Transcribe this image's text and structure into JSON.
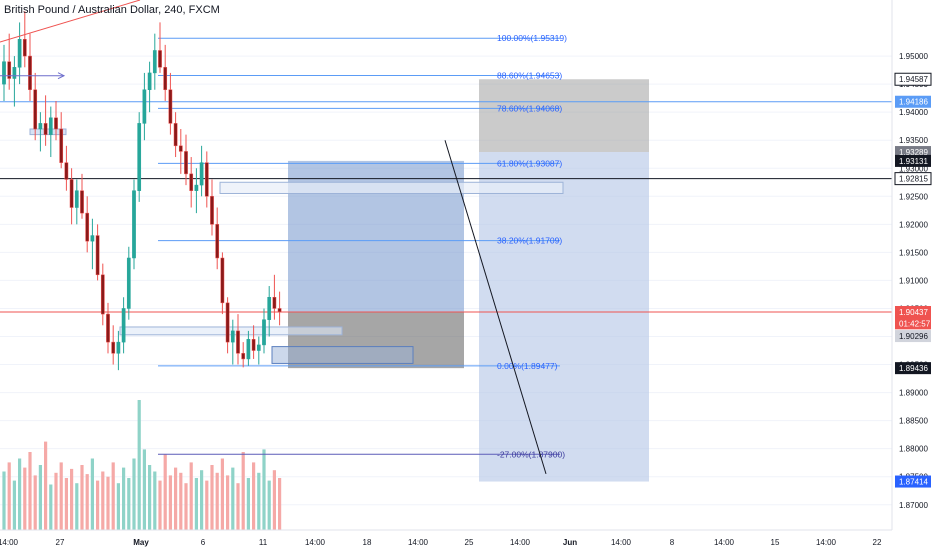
{
  "chart_data": {
    "type": "candlestick",
    "title": "British Pound / Australian Dollar, 240, FXCM",
    "symbol": "GBPAUD",
    "timeframe": "240",
    "broker": "FXCM",
    "y_range": [
      1.8655,
      1.96
    ],
    "y_ticks": [
      "1.95000",
      "1.94500",
      "1.94000",
      "1.93500",
      "1.93000",
      "1.92500",
      "1.92000",
      "1.91500",
      "1.91000",
      "1.90500",
      "1.90000",
      "1.89500",
      "1.89000",
      "1.88500",
      "1.88000",
      "1.87500",
      "1.87000"
    ],
    "x_ticks": [
      "14:00",
      "27",
      "May",
      "6",
      "11",
      "14:00",
      "18",
      "14:00",
      "25",
      "14:00",
      "Jun",
      "14:00",
      "8",
      "14:00",
      "15",
      "14:00",
      "22"
    ],
    "fibonacci": [
      {
        "label": "100.00%(1.95319)",
        "value": 1.95319
      },
      {
        "label": "88.60%(1.94653)",
        "value": 1.94653
      },
      {
        "label": "78.60%(1.94068)",
        "value": 1.94068
      },
      {
        "label": "61.80%(1.93087)",
        "value": 1.93087
      },
      {
        "label": "38.20%(1.91709)",
        "value": 1.91709
      },
      {
        "label": "0.00%(1.89477)",
        "value": 1.89477
      },
      {
        "label": "-27.00%(1.87900)",
        "value": 1.879
      }
    ],
    "price_badges": [
      {
        "label": "1.94587",
        "value": 1.94587,
        "bg": "#ffffff",
        "fg": "#131722",
        "border": "#131722"
      },
      {
        "label": "1.94186",
        "value": 1.94186,
        "bg": "#5b9cf6",
        "fg": "#ffffff"
      },
      {
        "label": "1.93289",
        "value": 1.93289,
        "bg": "#787b86",
        "fg": "#ffffff"
      },
      {
        "label": "1.93131",
        "value": 1.93131,
        "bg": "#131722",
        "fg": "#ffffff"
      },
      {
        "label": "1.92815",
        "value": 1.92815,
        "bg": "#ffffff",
        "fg": "#131722",
        "border": "#131722"
      },
      {
        "label": "1.90437",
        "value": 1.90437,
        "bg": "#ef5350",
        "fg": "#ffffff"
      },
      {
        "label": "01:42:57",
        "value": 1.90235,
        "bg": "#ef5350",
        "fg": "#ffffff"
      },
      {
        "label": "1.90296",
        "value": 1.90008,
        "bg": "#d1d4dc",
        "fg": "#131722"
      },
      {
        "label": "1.89436",
        "value": 1.89436,
        "bg": "#131722",
        "fg": "#ffffff"
      },
      {
        "label": "1.87414",
        "value": 1.87414,
        "bg": "#2962ff",
        "fg": "#ffffff"
      }
    ],
    "horizontal_lines": [
      {
        "value": 1.94186,
        "color": "#5b9cf6"
      },
      {
        "value": 1.92815,
        "color": "#131722"
      },
      {
        "value": 1.90437,
        "color": "#ef5350"
      }
    ],
    "candles": [
      {
        "o": 1.945,
        "h": 1.952,
        "l": 1.942,
        "c": 1.949
      },
      {
        "o": 1.949,
        "h": 1.954,
        "l": 1.944,
        "c": 1.946
      },
      {
        "o": 1.946,
        "h": 1.95,
        "l": 1.941,
        "c": 1.948
      },
      {
        "o": 1.948,
        "h": 1.956,
        "l": 1.945,
        "c": 1.953
      },
      {
        "o": 1.953,
        "h": 1.958,
        "l": 1.948,
        "c": 1.95
      },
      {
        "o": 1.95,
        "h": 1.954,
        "l": 1.942,
        "c": 1.944
      },
      {
        "o": 1.944,
        "h": 1.947,
        "l": 1.935,
        "c": 1.937
      },
      {
        "o": 1.937,
        "h": 1.94,
        "l": 1.933,
        "c": 1.938
      },
      {
        "o": 1.938,
        "h": 1.943,
        "l": 1.934,
        "c": 1.936
      },
      {
        "o": 1.936,
        "h": 1.941,
        "l": 1.932,
        "c": 1.939
      },
      {
        "o": 1.939,
        "h": 1.942,
        "l": 1.935,
        "c": 1.937
      },
      {
        "o": 1.937,
        "h": 1.94,
        "l": 1.93,
        "c": 1.931
      },
      {
        "o": 1.931,
        "h": 1.934,
        "l": 1.926,
        "c": 1.928
      },
      {
        "o": 1.928,
        "h": 1.93,
        "l": 1.92,
        "c": 1.923
      },
      {
        "o": 1.923,
        "h": 1.928,
        "l": 1.92,
        "c": 1.926
      },
      {
        "o": 1.926,
        "h": 1.929,
        "l": 1.921,
        "c": 1.922
      },
      {
        "o": 1.922,
        "h": 1.925,
        "l": 1.915,
        "c": 1.917
      },
      {
        "o": 1.917,
        "h": 1.921,
        "l": 1.912,
        "c": 1.918
      },
      {
        "o": 1.918,
        "h": 1.92,
        "l": 1.91,
        "c": 1.911
      },
      {
        "o": 1.911,
        "h": 1.913,
        "l": 1.902,
        "c": 1.904
      },
      {
        "o": 1.904,
        "h": 1.906,
        "l": 1.897,
        "c": 1.899
      },
      {
        "o": 1.899,
        "h": 1.902,
        "l": 1.895,
        "c": 1.897
      },
      {
        "o": 1.897,
        "h": 1.901,
        "l": 1.894,
        "c": 1.899
      },
      {
        "o": 1.899,
        "h": 1.907,
        "l": 1.897,
        "c": 1.905
      },
      {
        "o": 1.905,
        "h": 1.916,
        "l": 1.903,
        "c": 1.914
      },
      {
        "o": 1.914,
        "h": 1.928,
        "l": 1.912,
        "c": 1.926
      },
      {
        "o": 1.926,
        "h": 1.94,
        "l": 1.924,
        "c": 1.938
      },
      {
        "o": 1.938,
        "h": 1.947,
        "l": 1.935,
        "c": 1.944
      },
      {
        "o": 1.944,
        "h": 1.949,
        "l": 1.94,
        "c": 1.947
      },
      {
        "o": 1.947,
        "h": 1.954,
        "l": 1.944,
        "c": 1.951
      },
      {
        "o": 1.951,
        "h": 1.956,
        "l": 1.947,
        "c": 1.948
      },
      {
        "o": 1.948,
        "h": 1.952,
        "l": 1.942,
        "c": 1.944
      },
      {
        "o": 1.944,
        "h": 1.947,
        "l": 1.936,
        "c": 1.938
      },
      {
        "o": 1.938,
        "h": 1.94,
        "l": 1.932,
        "c": 1.934
      },
      {
        "o": 1.934,
        "h": 1.937,
        "l": 1.929,
        "c": 1.933
      },
      {
        "o": 1.933,
        "h": 1.936,
        "l": 1.927,
        "c": 1.929
      },
      {
        "o": 1.929,
        "h": 1.932,
        "l": 1.923,
        "c": 1.926
      },
      {
        "o": 1.926,
        "h": 1.93,
        "l": 1.922,
        "c": 1.927
      },
      {
        "o": 1.927,
        "h": 1.934,
        "l": 1.925,
        "c": 1.931
      },
      {
        "o": 1.931,
        "h": 1.933,
        "l": 1.923,
        "c": 1.925
      },
      {
        "o": 1.925,
        "h": 1.928,
        "l": 1.918,
        "c": 1.92
      },
      {
        "o": 1.92,
        "h": 1.923,
        "l": 1.912,
        "c": 1.914
      },
      {
        "o": 1.914,
        "h": 1.915,
        "l": 1.904,
        "c": 1.906
      },
      {
        "o": 1.906,
        "h": 1.907,
        "l": 1.897,
        "c": 1.899
      },
      {
        "o": 1.899,
        "h": 1.903,
        "l": 1.895,
        "c": 1.901
      },
      {
        "o": 1.901,
        "h": 1.904,
        "l": 1.895,
        "c": 1.897
      },
      {
        "o": 1.897,
        "h": 1.899,
        "l": 1.8945,
        "c": 1.896
      },
      {
        "o": 1.896,
        "h": 1.901,
        "l": 1.8948,
        "c": 1.8995
      },
      {
        "o": 1.8995,
        "h": 1.902,
        "l": 1.896,
        "c": 1.8975
      },
      {
        "o": 1.8975,
        "h": 1.9,
        "l": 1.895,
        "c": 1.8985
      },
      {
        "o": 1.8985,
        "h": 1.905,
        "l": 1.897,
        "c": 1.903
      },
      {
        "o": 1.903,
        "h": 1.909,
        "l": 1.9,
        "c": 1.907
      },
      {
        "o": 1.907,
        "h": 1.911,
        "l": 1.903,
        "c": 1.905
      },
      {
        "o": 1.905,
        "h": 1.908,
        "l": 1.902,
        "c": 1.9044
      }
    ],
    "volumes": [
      0.45,
      0.52,
      0.38,
      0.55,
      0.48,
      0.6,
      0.42,
      0.5,
      0.68,
      0.35,
      0.44,
      0.52,
      0.4,
      0.47,
      0.36,
      0.5,
      0.43,
      0.55,
      0.38,
      0.45,
      0.41,
      0.52,
      0.36,
      0.48,
      0.4,
      0.55,
      1.0,
      0.62,
      0.5,
      0.45,
      0.38,
      0.58,
      0.42,
      0.48,
      0.44,
      0.36,
      0.52,
      0.4,
      0.46,
      0.38,
      0.5,
      0.44,
      0.55,
      0.42,
      0.48,
      0.36,
      0.6,
      0.4,
      0.52,
      0.44,
      0.62,
      0.38,
      0.46,
      0.4
    ],
    "position_tool": {
      "entry": 1.90437,
      "stop": 1.89436,
      "target": 1.93131
    },
    "short_tool": {
      "entry": 1.93289,
      "stop": 1.94587,
      "target": 1.87414
    },
    "colors": {
      "up": "#26a69a",
      "down": "#ef5350",
      "candle_body": "#880e0e",
      "fib": "#5b9cf6",
      "grid": "#f0f3fa",
      "axis_text": "#131722"
    }
  }
}
